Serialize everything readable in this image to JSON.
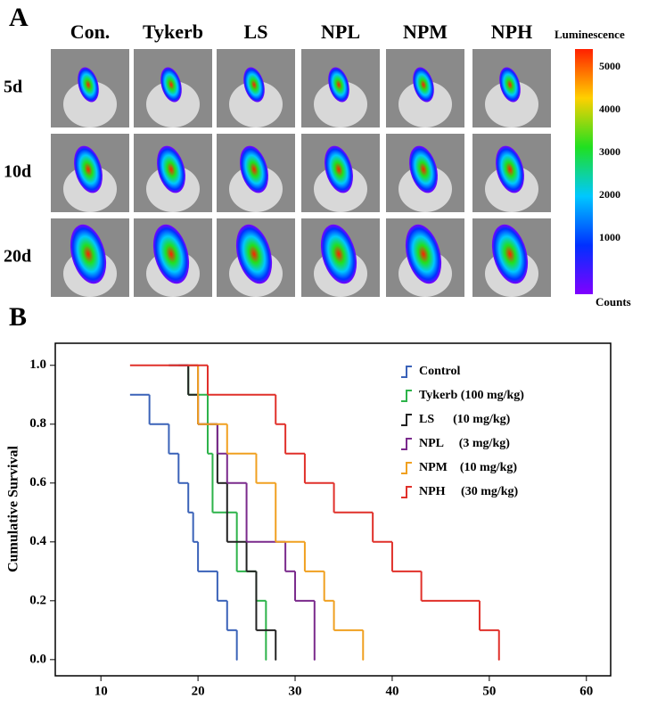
{
  "panel_a": {
    "label": "A",
    "columns": [
      "Con.",
      "Tykerb",
      "LS",
      "NPL",
      "NPM",
      "NPH"
    ],
    "rows": [
      "5d",
      "10d",
      "20d"
    ],
    "colorbar_title": "Luminescence",
    "colorbar_ticks": [
      "5000",
      "4000",
      "3000",
      "2000",
      "1000"
    ],
    "colorbar_unit": "Counts"
  },
  "chart_data": {
    "type": "step",
    "label": "B",
    "ylabel": "Cumulative Survival",
    "xlim": [
      5.3,
      62.5
    ],
    "xticks": [
      10,
      20,
      30,
      40,
      50,
      60
    ],
    "ylim": [
      -0.055,
      1.075
    ],
    "yticks": [
      {
        "value": 0,
        "label": "0.0"
      },
      {
        "value": 0.2,
        "label": "0.2"
      },
      {
        "value": 0.4,
        "label": "0.4"
      },
      {
        "value": 0.6,
        "label": "0.6"
      },
      {
        "value": 0.8,
        "label": "0.8"
      },
      {
        "value": 1,
        "label": "1.0"
      }
    ],
    "series": [
      {
        "name": "Control",
        "color": "#3a62b8",
        "x": [
          13,
          15,
          17,
          18,
          19,
          19.5,
          20,
          22,
          23,
          24
        ],
        "values": [
          0.9,
          0.8,
          0.7,
          0.6,
          0.5,
          0.4,
          0.3,
          0.2,
          0.1,
          0
        ]
      },
      {
        "name": "Tykerb (100 mg/kg)",
        "color": "#2db34a",
        "x": [
          17,
          19,
          21,
          21.5,
          24,
          26,
          27
        ],
        "values": [
          1,
          0.9,
          0.7,
          0.5,
          0.3,
          0.2,
          0
        ]
      },
      {
        "name": "LS      (10 mg/kg)",
        "color": "#222222",
        "x": [
          18,
          19,
          20,
          22,
          23,
          25,
          26,
          28
        ],
        "values": [
          1,
          0.9,
          0.8,
          0.6,
          0.4,
          0.3,
          0.1,
          0
        ]
      },
      {
        "name": "NPL     (3 mg/kg)",
        "color": "#7a2a8c",
        "x": [
          17,
          20,
          22,
          23,
          25,
          29,
          30,
          32
        ],
        "values": [
          1,
          0.8,
          0.7,
          0.6,
          0.4,
          0.3,
          0.2,
          0
        ]
      },
      {
        "name": "NPM    (10 mg/kg)",
        "color": "#f0a020",
        "x": [
          19,
          20,
          23,
          26,
          28,
          31,
          33,
          34,
          37
        ],
        "values": [
          1,
          0.8,
          0.7,
          0.6,
          0.4,
          0.3,
          0.2,
          0.1,
          0
        ]
      },
      {
        "name": "NPH     (30 mg/kg)",
        "color": "#e0302a",
        "x": [
          13,
          21,
          28,
          29,
          31,
          34,
          38,
          40,
          43,
          49,
          51
        ],
        "values": [
          1,
          0.9,
          0.8,
          0.7,
          0.6,
          0.5,
          0.4,
          0.3,
          0.2,
          0.1,
          0
        ]
      }
    ]
  }
}
